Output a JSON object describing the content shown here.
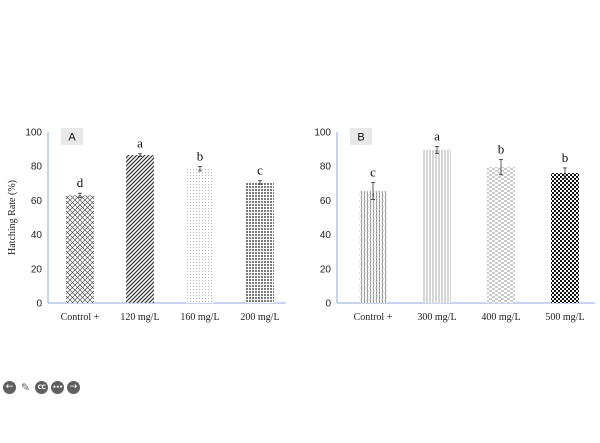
{
  "chart_data": [
    {
      "type": "bar",
      "panel_label": "A",
      "ylabel": "Hatching Rate (%)",
      "ylim": [
        0,
        100
      ],
      "yticks": [
        0,
        20,
        40,
        60,
        80,
        100
      ],
      "categories": [
        "Control +",
        "120 mg/L",
        "160 mg/L",
        "200 mg/L"
      ],
      "values": [
        63,
        86.5,
        78.5,
        70.5
      ],
      "errors": [
        1.2,
        0.8,
        1.3,
        1.0
      ],
      "letters": [
        "d",
        "a",
        "b",
        "c"
      ],
      "patterns": [
        "crosshatch",
        "diag",
        "dots",
        "grid"
      ],
      "grid": false
    },
    {
      "type": "bar",
      "panel_label": "B",
      "ylabel": "",
      "ylim": [
        0,
        100
      ],
      "yticks": [
        0,
        20,
        40,
        60,
        80,
        100
      ],
      "categories": [
        "Control +",
        "300 mg/L",
        "400 mg/L",
        "500 mg/L"
      ],
      "values": [
        65.5,
        89.5,
        79.5,
        76
      ],
      "errors": [
        5,
        2,
        4.5,
        3
      ],
      "letters": [
        "c",
        "a",
        "b",
        "b"
      ],
      "patterns": [
        "vwave",
        "vlines",
        "dashes",
        "checker"
      ],
      "grid": false
    }
  ],
  "controls": {
    "prev": "←",
    "edit": "✎",
    "captions": "CC",
    "more": "•••",
    "next": "→"
  },
  "colors": {
    "axis": "#8eaadb",
    "text": "#222222",
    "bar_ink": "#333333",
    "panel_label_bg": "#e8e8e8"
  }
}
